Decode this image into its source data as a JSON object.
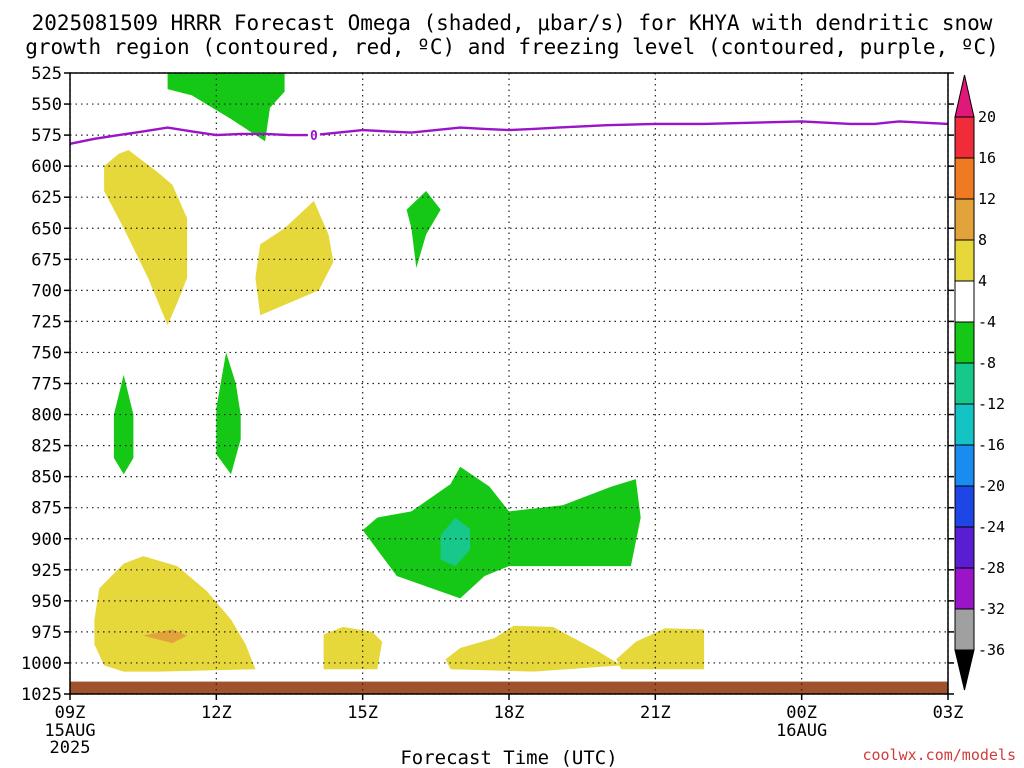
{
  "chart_data": {
    "type": "heatmap",
    "title_lines": [
      "2025081509 HRRR Forecast Omega (shaded, μbar/s) for KHYA with dendritic snow",
      "growth region (contoured, red, ºC) and freezing level (contoured, purple, ºC)"
    ],
    "xlabel": "Forecast Time (UTC)",
    "ylabel": "",
    "x_ticks": [
      {
        "h": 0,
        "label": "09Z",
        "sub": [
          "15AUG",
          "2025"
        ]
      },
      {
        "h": 3,
        "label": "12Z",
        "sub": []
      },
      {
        "h": 6,
        "label": "15Z",
        "sub": []
      },
      {
        "h": 9,
        "label": "18Z",
        "sub": []
      },
      {
        "h": 12,
        "label": "21Z",
        "sub": []
      },
      {
        "h": 15,
        "label": "00Z",
        "sub": [
          "16AUG"
        ]
      },
      {
        "h": 18,
        "label": "03Z",
        "sub": []
      }
    ],
    "y_ticks": [
      525,
      550,
      575,
      600,
      625,
      650,
      675,
      700,
      725,
      750,
      775,
      800,
      825,
      850,
      875,
      900,
      925,
      950,
      975,
      1000,
      1025
    ],
    "xlim": [
      0,
      18
    ],
    "ylim": [
      1025,
      525
    ],
    "grid": true,
    "colorbar": {
      "labels": [
        "20",
        "16",
        "12",
        "8",
        "4",
        "-4",
        "-8",
        "-12",
        "-16",
        "-20",
        "-24",
        "-28",
        "-32",
        "-36"
      ],
      "colors": [
        "#f02c3a",
        "#f07a22",
        "#e2a43a",
        "#e6d83a",
        "#ffffff",
        "#16c816",
        "#16c88a",
        "#14c4c4",
        "#1a8cf0",
        "#1e46e6",
        "#5a1ed2",
        "#9a14c8",
        "#a0a0a0"
      ],
      "top_color": "#e0187a",
      "bottom_color": "#000000"
    },
    "freezing_level": {
      "color": "#9a14c8",
      "label": "0",
      "label_h": 5.0,
      "h": [
        0,
        0.5,
        1,
        1.5,
        2,
        2.5,
        3,
        3.5,
        4,
        4.5,
        5,
        5.5,
        6,
        6.5,
        7,
        7.5,
        8,
        8.5,
        9,
        9.5,
        10,
        11,
        12,
        13,
        14,
        15,
        16,
        16.5,
        17,
        17.5,
        18
      ],
      "p": [
        582,
        578,
        575,
        572,
        569,
        572,
        575,
        574,
        574,
        575,
        575,
        573,
        571,
        572,
        573,
        571,
        569,
        570,
        571,
        570,
        569,
        567,
        566,
        566,
        565,
        564,
        566,
        566,
        564,
        565,
        566
      ]
    },
    "regions": [
      {
        "value": 6,
        "color": "#e6d83a",
        "points": [
          [
            1.1,
            1007
          ],
          [
            1.8,
            1007
          ],
          [
            3.8,
            1005
          ],
          [
            3.6,
            985
          ],
          [
            3.3,
            965
          ],
          [
            2.8,
            942
          ],
          [
            2.2,
            922
          ],
          [
            1.5,
            914
          ],
          [
            1.1,
            920
          ],
          [
            0.6,
            940
          ],
          [
            0.5,
            965
          ],
          [
            0.5,
            985
          ],
          [
            0.7,
            1002
          ]
        ]
      },
      {
        "value": 10,
        "color": "#e2a43a",
        "points": [
          [
            1.5,
            978
          ],
          [
            2.1,
            973
          ],
          [
            2.4,
            978
          ],
          [
            2.1,
            984
          ]
        ]
      },
      {
        "value": 6,
        "color": "#e6d83a",
        "points": [
          [
            5.2,
            1005
          ],
          [
            6.3,
            1005
          ],
          [
            6.4,
            983
          ],
          [
            6.2,
            975
          ],
          [
            5.6,
            971
          ],
          [
            5.2,
            977
          ]
        ]
      },
      {
        "value": 6,
        "color": "#e6d83a",
        "points": [
          [
            7.8,
            1005
          ],
          [
            9.5,
            1007
          ],
          [
            11.3,
            1002
          ],
          [
            10.8,
            990
          ],
          [
            9.9,
            971
          ],
          [
            9.1,
            970
          ],
          [
            8.7,
            980
          ],
          [
            8,
            988
          ],
          [
            7.7,
            997
          ]
        ]
      },
      {
        "value": 6,
        "color": "#e6d83a",
        "points": [
          [
            11.3,
            1005
          ],
          [
            13,
            1005
          ],
          [
            13,
            973
          ],
          [
            12.2,
            972
          ],
          [
            11.6,
            983
          ],
          [
            11.2,
            997
          ]
        ]
      },
      {
        "value": 6,
        "color": "#e6d83a",
        "points": [
          [
            1.0,
            590
          ],
          [
            1.2,
            587
          ],
          [
            1.8,
            605
          ],
          [
            2.1,
            615
          ],
          [
            2.4,
            642
          ],
          [
            2.4,
            690
          ],
          [
            2.2,
            710
          ],
          [
            2.0,
            728
          ],
          [
            1.6,
            690
          ],
          [
            1.1,
            650
          ],
          [
            0.7,
            620
          ],
          [
            0.7,
            600
          ]
        ]
      },
      {
        "value": 6,
        "color": "#e6d83a",
        "points": [
          [
            3.9,
            663
          ],
          [
            4.4,
            650
          ],
          [
            5.0,
            628
          ],
          [
            5.3,
            655
          ],
          [
            5.4,
            677
          ],
          [
            5.1,
            700
          ],
          [
            3.9,
            720
          ],
          [
            3.8,
            690
          ]
        ]
      },
      {
        "value": -6,
        "color": "#16c816",
        "points": [
          [
            2.0,
            525
          ],
          [
            4.4,
            525
          ],
          [
            4.4,
            540
          ],
          [
            4.1,
            553
          ],
          [
            4.0,
            580
          ],
          [
            3.3,
            562
          ],
          [
            2.5,
            543
          ],
          [
            2.0,
            538
          ]
        ]
      },
      {
        "value": -6,
        "color": "#16c816",
        "points": [
          [
            6.9,
            635
          ],
          [
            7.3,
            620
          ],
          [
            7.6,
            635
          ],
          [
            7.3,
            655
          ],
          [
            7.1,
            682
          ],
          [
            7.0,
            650
          ]
        ]
      },
      {
        "value": -6,
        "color": "#16c816",
        "points": [
          [
            0.9,
            800
          ],
          [
            1.1,
            768
          ],
          [
            1.3,
            800
          ],
          [
            1.3,
            835
          ],
          [
            1.1,
            848
          ],
          [
            0.9,
            835
          ]
        ]
      },
      {
        "value": -6,
        "color": "#16c816",
        "points": [
          [
            3.0,
            795
          ],
          [
            3.2,
            750
          ],
          [
            3.4,
            775
          ],
          [
            3.5,
            800
          ],
          [
            3.5,
            820
          ],
          [
            3.3,
            848
          ],
          [
            3.0,
            832
          ],
          [
            3.0,
            810
          ]
        ]
      },
      {
        "value": -6,
        "color": "#16c816",
        "points": [
          [
            6.0,
            893
          ],
          [
            6.3,
            883
          ],
          [
            7.0,
            878
          ],
          [
            7.8,
            856
          ],
          [
            8.0,
            842
          ],
          [
            8.6,
            858
          ],
          [
            9.0,
            878
          ],
          [
            10.1,
            873
          ],
          [
            11.1,
            858
          ],
          [
            11.6,
            852
          ],
          [
            11.7,
            883
          ],
          [
            11.5,
            922
          ],
          [
            10.8,
            922
          ],
          [
            9.5,
            922
          ],
          [
            9.0,
            922
          ],
          [
            8.5,
            930
          ],
          [
            8.0,
            948
          ],
          [
            6.7,
            930
          ]
        ]
      },
      {
        "value": -10,
        "color": "#16c88a",
        "points": [
          [
            7.6,
            897
          ],
          [
            7.9,
            883
          ],
          [
            8.2,
            892
          ],
          [
            8.2,
            909
          ],
          [
            7.9,
            922
          ],
          [
            7.6,
            917
          ]
        ]
      }
    ],
    "ground": {
      "color": "#a0522d",
      "top_p": 1015
    }
  },
  "credit": "coolwx.com/models"
}
